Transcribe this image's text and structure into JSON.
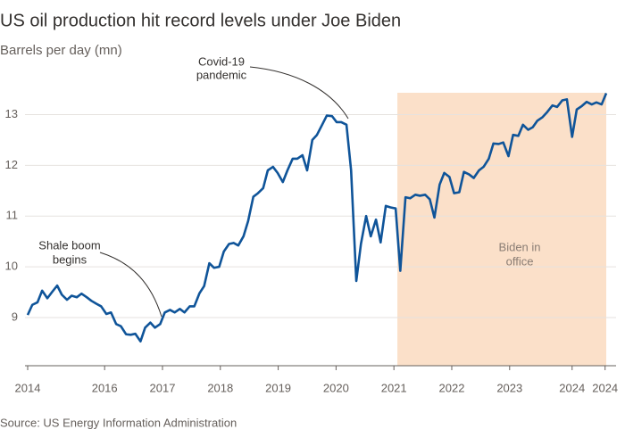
{
  "chart_data": {
    "type": "line",
    "title": "US oil production hit record levels under Joe Biden",
    "subtitle": "Barrels per day (mn)",
    "source": "Source: US Energy Information Administration",
    "color": "#0f5499",
    "grid": true,
    "x": [
      2014.67,
      2014.75,
      2014.84,
      2014.92,
      2015.01,
      2015.09,
      2015.18,
      2015.26,
      2015.35,
      2015.43,
      2015.52,
      2015.6,
      2015.69,
      2015.77,
      2015.86,
      2015.94,
      2016.03,
      2016.11,
      2016.2,
      2016.28,
      2016.37,
      2016.45,
      2016.53,
      2016.62,
      2016.7,
      2016.79,
      2016.87,
      2016.96,
      2017.04,
      2017.13,
      2017.21,
      2017.3,
      2017.38,
      2017.47,
      2017.55,
      2017.64,
      2017.72,
      2017.81,
      2017.89,
      2017.98,
      2018.06,
      2018.15,
      2018.23,
      2018.31,
      2018.4,
      2018.48,
      2018.57,
      2018.65,
      2018.74,
      2018.82,
      2018.91,
      2018.99,
      2019.08,
      2019.16,
      2019.25,
      2019.33,
      2019.42,
      2019.5,
      2019.59,
      2019.67,
      2019.76,
      2019.84,
      2019.93,
      2020.01,
      2020.09,
      2020.18,
      2020.26,
      2020.35,
      2020.43,
      2020.52,
      2020.6,
      2020.69,
      2020.77,
      2020.86,
      2020.94,
      2021.03,
      2021.11,
      2021.2,
      2021.28,
      2021.37,
      2021.45,
      2021.54,
      2021.62,
      2021.7,
      2021.79,
      2021.87,
      2021.96,
      2022.04,
      2022.13,
      2022.21,
      2022.3,
      2022.38,
      2022.47,
      2022.55,
      2022.64,
      2022.72,
      2022.81,
      2022.89,
      2022.98,
      2023.06,
      2023.15,
      2023.23,
      2023.32,
      2023.4,
      2023.48,
      2023.57,
      2023.65,
      2023.74,
      2023.82,
      2023.91,
      2023.99,
      2024.08,
      2024.16,
      2024.25,
      2024.33,
      2024.42,
      2024.5,
      2024.59,
      2024.67
    ],
    "values": [
      9.05,
      9.25,
      9.3,
      9.53,
      9.38,
      9.5,
      9.63,
      9.45,
      9.35,
      9.43,
      9.4,
      9.47,
      9.4,
      9.33,
      9.27,
      9.22,
      9.07,
      9.1,
      8.87,
      8.83,
      8.67,
      8.66,
      8.68,
      8.53,
      8.8,
      8.9,
      8.8,
      8.87,
      9.1,
      9.15,
      9.1,
      9.17,
      9.1,
      9.22,
      9.22,
      9.48,
      9.62,
      10.07,
      9.98,
      10.0,
      10.3,
      10.45,
      10.47,
      10.42,
      10.6,
      10.9,
      11.38,
      11.45,
      11.55,
      11.9,
      11.97,
      11.85,
      11.67,
      11.9,
      12.13,
      12.13,
      12.2,
      11.9,
      12.5,
      12.6,
      12.8,
      12.98,
      12.97,
      12.85,
      12.85,
      12.8,
      11.9,
      9.72,
      10.45,
      11.0,
      10.6,
      10.93,
      10.48,
      11.2,
      11.17,
      11.15,
      9.92,
      11.37,
      11.35,
      11.42,
      11.4,
      11.42,
      11.33,
      10.97,
      11.62,
      11.85,
      11.77,
      11.45,
      11.47,
      11.87,
      11.82,
      11.75,
      11.9,
      11.97,
      12.13,
      12.43,
      12.42,
      12.45,
      12.18,
      12.6,
      12.58,
      12.8,
      12.7,
      12.75,
      12.88,
      12.95,
      13.05,
      13.18,
      13.15,
      13.28,
      13.3,
      12.56,
      13.1,
      13.17,
      13.25,
      13.2,
      13.24,
      13.2,
      13.42
    ],
    "xlim": [
      2014.67,
      2024.67
    ],
    "xticks": [
      {
        "value": 2014.67,
        "label": "2014"
      },
      2016,
      2017,
      2018,
      2019,
      2020,
      2021,
      2022,
      2023,
      {
        "value": 2024.08,
        "label": "2024"
      },
      {
        "value": 2024.65,
        "label": "2024"
      }
    ],
    "ylim": [
      8.05,
      13.5
    ],
    "yticks": [
      9,
      10,
      11,
      12,
      13
    ],
    "shade": {
      "from": 2021.06,
      "to": 2024.67,
      "color": "#fbe0c9",
      "label": [
        "Biden in",
        "office"
      ]
    },
    "annotations": [
      {
        "lines": [
          "Covid-19",
          "pandemic"
        ]
      },
      {
        "lines": [
          "Shale boom",
          "begins"
        ]
      }
    ]
  }
}
